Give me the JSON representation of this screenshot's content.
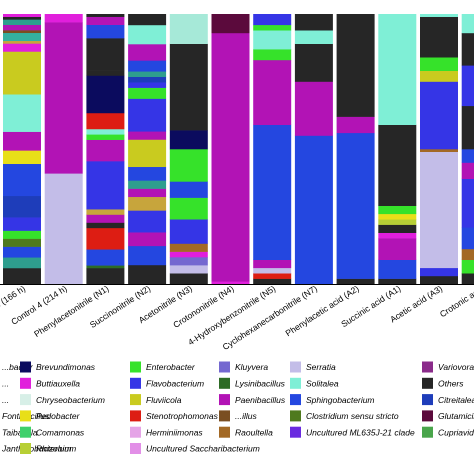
{
  "chart_data": {
    "type": "bar",
    "stacked": true,
    "percent": true,
    "categories": [
      "...d 3 (166 h)",
      "Control 4 (214 h)",
      "Phenylacetonitrile (N1)",
      "Succinonitrile (N2)",
      "Acetonitrile (N3)",
      "Crotononitrile (N4)",
      "4-Hydroxybenzonitrile (N5)",
      "Cyclohexanecarbonitrile (N7)",
      "Phenylacetic acid (A2)",
      "Succinic acid (A1)",
      "Acetic acid (A3)",
      "Crotonic ac..."
    ],
    "legend": [
      {
        "name": "...bacter",
        "color": "#2E9E8E"
      },
      {
        "name": "Brevundimonas",
        "color": "#0B0B5E"
      },
      {
        "name": "Enterobacter",
        "color": "#36E22A"
      },
      {
        "name": "Kluyvera",
        "color": "#7468D0"
      },
      {
        "name": "Serratia",
        "color": "#C3BDE8"
      },
      {
        "name": "Variovora...",
        "color": "#8A2A8A"
      },
      {
        "name": "...",
        "color": "#C7A53C"
      },
      {
        "name": "Buttiauxella",
        "color": "#E11FDC"
      },
      {
        "name": "Flavobacterium",
        "color": "#3535E6"
      },
      {
        "name": "Lysinibacillus",
        "color": "#2D6B25"
      },
      {
        "name": "Solitalea",
        "color": "#7FEFD6"
      },
      {
        "name": "Others",
        "color": "#262626"
      },
      {
        "name": "...",
        "color": "#34B0A0"
      },
      {
        "name": "Chryseobacterium",
        "color": "#D7EFE7"
      },
      {
        "name": "Fluviicola",
        "color": "#C9CB1F"
      },
      {
        "name": "Paenibacillus",
        "color": "#B213B5"
      },
      {
        "name": "Sphingobacterium",
        "color": "#2447E0"
      },
      {
        "name": "Citreitalea",
        "color": "#1E3DBA"
      },
      {
        "name": "Fontibacillus",
        "color": "#A6E9D8"
      },
      {
        "name": "Pedobacter",
        "color": "#E8DF18"
      },
      {
        "name": "Stenotrophomonas",
        "color": "#DD1D13"
      },
      {
        "name": "...illus",
        "color": "#7A4E21"
      },
      {
        "name": "Clostridium sensu stricto",
        "color": "#4F7A1E"
      },
      {
        "name": "Glutamicibacter",
        "color": "#5B0A3C"
      },
      {
        "name": "Taibaiella",
        "color": "#567B19"
      },
      {
        "name": "Comamonas",
        "color": "#3ED06B"
      },
      {
        "name": "Herminiimonas",
        "color": "#E5A4E7"
      },
      {
        "name": "Raoultella",
        "color": "#A36925"
      },
      {
        "name": "Uncultured ML635J-21 clade",
        "color": "#6A2BE0"
      },
      {
        "name": "Cupriavidus",
        "color": "#49A54B"
      },
      {
        "name": "Janthinobacterium",
        "color": "#B38AE0"
      },
      {
        "name": "Rhizobium",
        "color": "#B7CF35"
      },
      {
        "name": "Uncultured Saccharibacterium",
        "color": "#E28FE7"
      }
    ],
    "series": [
      {
        "values": [
          [
            6,
            "#262626"
          ],
          [
            4,
            "#2E9E8E"
          ],
          [
            4,
            "#2447E0"
          ],
          [
            3,
            "#4F7A1E"
          ],
          [
            3,
            "#36E22A"
          ],
          [
            5,
            "#3535E6"
          ],
          [
            8,
            "#1E3DBA"
          ],
          [
            12,
            "#2447E0"
          ],
          [
            5,
            "#E8DF18"
          ],
          [
            7,
            "#B213B5"
          ],
          [
            14,
            "#7FEFD6"
          ],
          [
            16,
            "#C9CB1F"
          ],
          [
            3,
            "#E11FDC"
          ],
          [
            1,
            "#C7A53C"
          ],
          [
            3,
            "#34B0A0"
          ],
          [
            1,
            "#7A4E21"
          ],
          [
            2,
            "#B213B5"
          ],
          [
            2,
            "#2E9E8E"
          ],
          [
            1,
            "#262626"
          ],
          [
            1,
            "#E11FDC"
          ]
        ]
      },
      {
        "values": [
          [
            41,
            "#C3BDE8"
          ],
          [
            56,
            "#B213B5"
          ],
          [
            3,
            "#E11FDC"
          ]
        ]
      },
      {
        "values": [
          [
            6,
            "#262626"
          ],
          [
            1,
            "#2D6B25"
          ],
          [
            6,
            "#2447E0"
          ],
          [
            8,
            "#DD1D13"
          ],
          [
            2,
            "#262626"
          ],
          [
            3,
            "#B213B5"
          ],
          [
            2,
            "#C7A53C"
          ],
          [
            18,
            "#3535E6"
          ],
          [
            8,
            "#B213B5"
          ],
          [
            2,
            "#36E22A"
          ],
          [
            2,
            "#7FEFD6"
          ],
          [
            6,
            "#DD1D13"
          ],
          [
            14,
            "#0B0B5E"
          ],
          [
            2,
            "#262626"
          ],
          [
            12,
            "#262626"
          ],
          [
            5,
            "#2447E0"
          ],
          [
            3,
            "#B213B5"
          ],
          [
            1,
            "#262626"
          ]
        ]
      },
      {
        "values": [
          [
            7,
            "#262626"
          ],
          [
            7,
            "#2447E0"
          ],
          [
            5,
            "#B213B5"
          ],
          [
            8,
            "#3535E6"
          ],
          [
            5,
            "#C7A53C"
          ],
          [
            3,
            "#B213B5"
          ],
          [
            3,
            "#2E9E8E"
          ],
          [
            5,
            "#2447E0"
          ],
          [
            10,
            "#C9CB1F"
          ],
          [
            3,
            "#B213B5"
          ],
          [
            12,
            "#3535E6"
          ],
          [
            4,
            "#36E22A"
          ],
          [
            2,
            "#3535E6"
          ],
          [
            2,
            "#1E3DBA"
          ],
          [
            2,
            "#2E9E8E"
          ],
          [
            4,
            "#2447E0"
          ],
          [
            6,
            "#B213B5"
          ],
          [
            7,
            "#7FEFD6"
          ],
          [
            4,
            "#262626"
          ]
        ]
      },
      {
        "values": [
          [
            4,
            "#262626"
          ],
          [
            3,
            "#C3BDE8"
          ],
          [
            3,
            "#7468D0"
          ],
          [
            2,
            "#E11FDC"
          ],
          [
            3,
            "#A36925"
          ],
          [
            9,
            "#3535E6"
          ],
          [
            8,
            "#36E22A"
          ],
          [
            6,
            "#2447E0"
          ],
          [
            12,
            "#36E22A"
          ],
          [
            7,
            "#0B0B5E"
          ],
          [
            32,
            "#262626"
          ],
          [
            11,
            "#A6E9D8"
          ]
        ]
      },
      {
        "values": [
          [
            1,
            "#E11FDC"
          ],
          [
            92,
            "#B213B5"
          ],
          [
            7,
            "#5B0A3C"
          ]
        ]
      },
      {
        "values": [
          [
            2,
            "#262626"
          ],
          [
            2,
            "#DD1D13"
          ],
          [
            2,
            "#C3BDE8"
          ],
          [
            3,
            "#B213B5"
          ],
          [
            50,
            "#2447E0"
          ],
          [
            24,
            "#B213B5"
          ],
          [
            4,
            "#36E22A"
          ],
          [
            7,
            "#7FEFD6"
          ],
          [
            2,
            "#36E22A"
          ],
          [
            4,
            "#3535E6"
          ]
        ]
      },
      {
        "values": [
          [
            55,
            "#2447E0"
          ],
          [
            20,
            "#B213B5"
          ],
          [
            14,
            "#262626"
          ],
          [
            5,
            "#7FEFD6"
          ],
          [
            6,
            "#262626"
          ]
        ]
      },
      {
        "values": [
          [
            2,
            "#262626"
          ],
          [
            54,
            "#2447E0"
          ],
          [
            6,
            "#B213B5"
          ],
          [
            38,
            "#262626"
          ]
        ]
      },
      {
        "values": [
          [
            2,
            "#262626"
          ],
          [
            7,
            "#2447E0"
          ],
          [
            8,
            "#B213B5"
          ],
          [
            2,
            "#E11FDC"
          ],
          [
            3,
            "#262626"
          ],
          [
            2,
            "#B7CF35"
          ],
          [
            2,
            "#E8DF18"
          ],
          [
            3,
            "#36E22A"
          ],
          [
            30,
            "#262626"
          ],
          [
            41,
            "#7FEFD6"
          ]
        ]
      },
      {
        "values": [
          [
            3,
            "#262626"
          ],
          [
            3,
            "#3535E6"
          ],
          [
            43,
            "#C3BDE8"
          ],
          [
            1,
            "#A36925"
          ],
          [
            25,
            "#3535E6"
          ],
          [
            4,
            "#C9CB1F"
          ],
          [
            5,
            "#36E22A"
          ],
          [
            15,
            "#262626"
          ],
          [
            1,
            "#7FEFD6"
          ]
        ]
      },
      {
        "values": [
          [
            4,
            "#262626"
          ],
          [
            5,
            "#36E22A"
          ],
          [
            4,
            "#A36925"
          ],
          [
            8,
            "#2447E0"
          ],
          [
            18,
            "#3535E6"
          ],
          [
            6,
            "#B213B5"
          ],
          [
            5,
            "#2447E0"
          ],
          [
            16,
            "#262626"
          ],
          [
            15,
            "#3535E6"
          ],
          [
            12,
            "#262626"
          ],
          [
            7,
            "#7FEFD6"
          ]
        ]
      }
    ]
  }
}
